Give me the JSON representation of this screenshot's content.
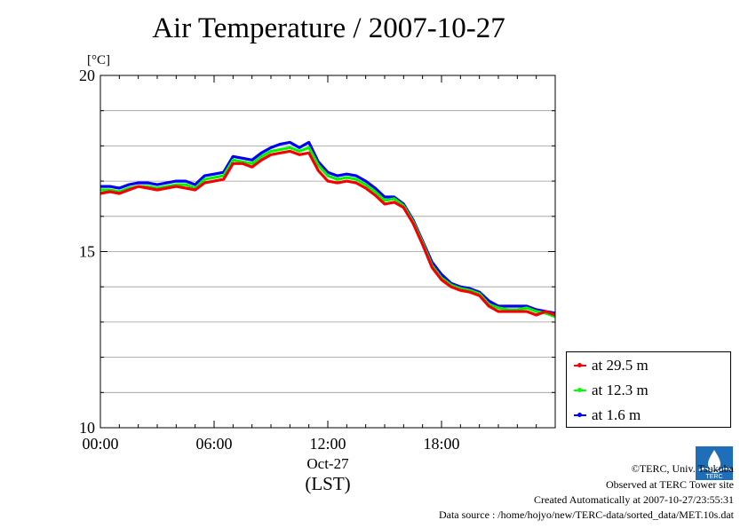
{
  "title": "Air Temperature / 2007-10-27",
  "credits": {
    "copyright": "©TERC, Univ. Tsukuba",
    "observed": "Observed at TERC Tower site",
    "created": "Created Automatically at 2007-10-27/23:55:31",
    "source": "Data source : /home/hojyo/new/TERC-data/sorted_data/MET.10s.dat"
  },
  "logo_text": "TERC",
  "chart_data": {
    "type": "line",
    "title": "Air Temperature / 2007-10-27",
    "ylabel": "[°C]",
    "xlabel": "(LST)",
    "date_label": "Oct-27",
    "xlim": [
      0,
      24
    ],
    "ylim": [
      10,
      20
    ],
    "x_ticks": [
      "00:00",
      "06:00",
      "12:00",
      "18:00"
    ],
    "x_tick_values": [
      0,
      6,
      12,
      18
    ],
    "y_ticks": [
      "10",
      "15",
      "20"
    ],
    "y_tick_values": [
      10,
      15,
      20
    ],
    "grid": true,
    "legend_position": "lower-right",
    "x": [
      0.0,
      0.5,
      1.0,
      1.5,
      2.0,
      2.5,
      3.0,
      3.5,
      4.0,
      4.5,
      5.0,
      5.5,
      6.0,
      6.5,
      7.0,
      7.5,
      8.0,
      8.5,
      9.0,
      9.5,
      10.0,
      10.5,
      11.0,
      11.5,
      12.0,
      12.5,
      13.0,
      13.5,
      14.0,
      14.5,
      15.0,
      15.5,
      16.0,
      16.5,
      17.0,
      17.5,
      18.0,
      18.5,
      19.0,
      19.5,
      20.0,
      20.5,
      21.0,
      21.5,
      22.0,
      22.5,
      23.0,
      23.5,
      24.0
    ],
    "series": [
      {
        "name": "at 29.5 m",
        "color": "#ff0000",
        "values": [
          16.65,
          16.7,
          16.65,
          16.75,
          16.85,
          16.8,
          16.75,
          16.8,
          16.85,
          16.8,
          16.75,
          16.95,
          17.0,
          17.05,
          17.5,
          17.5,
          17.4,
          17.6,
          17.75,
          17.8,
          17.85,
          17.75,
          17.8,
          17.3,
          17.0,
          16.95,
          17.0,
          16.95,
          16.8,
          16.6,
          16.35,
          16.4,
          16.25,
          15.8,
          15.2,
          14.55,
          14.2,
          14.0,
          13.9,
          13.85,
          13.75,
          13.45,
          13.3,
          13.3,
          13.3,
          13.3,
          13.2,
          13.3,
          13.2
        ]
      },
      {
        "name": "at 12.3 m",
        "color": "#00ff00",
        "values": [
          16.75,
          16.75,
          16.7,
          16.8,
          16.85,
          16.85,
          16.8,
          16.85,
          16.9,
          16.9,
          16.8,
          17.05,
          17.1,
          17.15,
          17.6,
          17.55,
          17.5,
          17.7,
          17.85,
          17.9,
          17.95,
          17.85,
          17.95,
          17.45,
          17.15,
          17.05,
          17.1,
          17.05,
          16.9,
          16.7,
          16.45,
          16.5,
          16.3,
          15.85,
          15.25,
          14.6,
          14.25,
          14.05,
          13.95,
          13.9,
          13.8,
          13.5,
          13.4,
          13.35,
          13.35,
          13.4,
          13.3,
          13.25,
          13.15
        ]
      },
      {
        "name": "at 1.6 m",
        "color": "#0000ff",
        "values": [
          16.85,
          16.85,
          16.8,
          16.9,
          16.95,
          16.95,
          16.9,
          16.95,
          17.0,
          17.0,
          16.9,
          17.15,
          17.2,
          17.25,
          17.7,
          17.65,
          17.6,
          17.8,
          17.95,
          18.05,
          18.1,
          17.95,
          18.1,
          17.55,
          17.25,
          17.15,
          17.2,
          17.15,
          17.0,
          16.8,
          16.55,
          16.55,
          16.35,
          15.9,
          15.3,
          14.7,
          14.35,
          14.1,
          14.0,
          13.95,
          13.85,
          13.6,
          13.45,
          13.45,
          13.45,
          13.45,
          13.35,
          13.3,
          13.25
        ]
      }
    ]
  }
}
